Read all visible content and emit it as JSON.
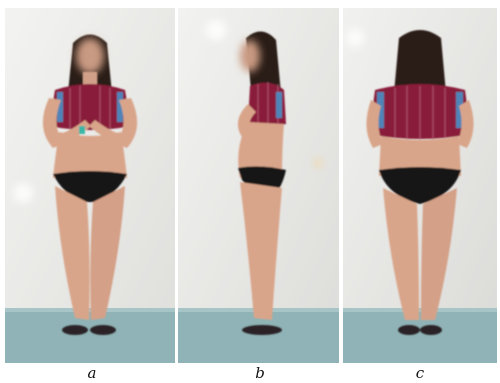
{
  "panels": [
    {
      "id": "a",
      "caption": "a",
      "view": "front"
    },
    {
      "id": "b",
      "caption": "b",
      "view": "side"
    },
    {
      "id": "c",
      "caption": "c",
      "view": "back"
    }
  ],
  "colors": {
    "wall": "#e9e9e7",
    "floor": "#8fb3b6",
    "skin": "#d9a58a",
    "hair": "#2a1d17",
    "shirt_red": "#8a1d3a",
    "shirt_blue": "#4f84b8",
    "underwear": "#141414",
    "sandal": "#2a2325"
  }
}
